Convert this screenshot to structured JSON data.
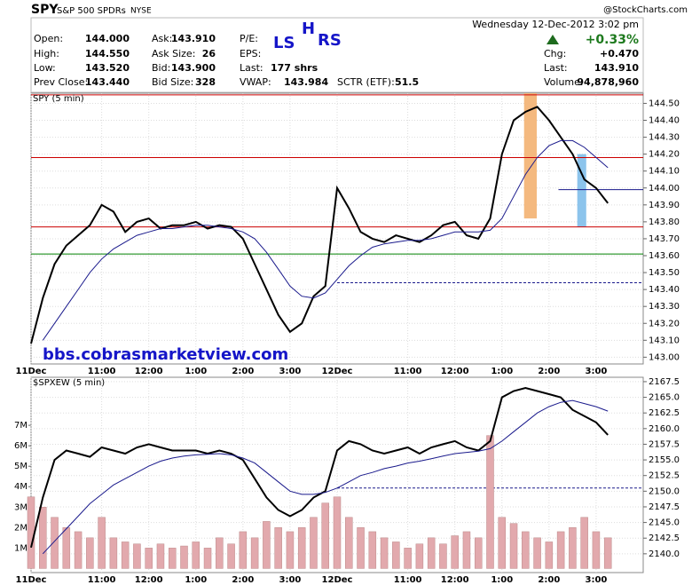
{
  "header": {
    "symbol": "SPY",
    "name": "S&P 500 SPDRs",
    "exchange": "NYSE",
    "credit": "@StockCharts.com",
    "datetime": "Wednesday   12-Dec-2012   3:02 pm",
    "change_pct": "+0.33%",
    "fields": [
      {
        "label": "Open:",
        "value": "144.000"
      },
      {
        "label": "High:",
        "value": "144.550"
      },
      {
        "label": "Low:",
        "value": "143.520"
      },
      {
        "label": "Prev Close:",
        "value": "143.440"
      },
      {
        "label": "Ask:",
        "value": "143.910"
      },
      {
        "label": "Ask Size:",
        "value": "26"
      },
      {
        "label": "Bid:",
        "value": "143.900"
      },
      {
        "label": "Bid Size:",
        "value": "328"
      },
      {
        "label": "P/E:"
      },
      {
        "label": "EPS:"
      },
      {
        "label": "Last:",
        "value": "177 shrs"
      },
      {
        "label": "VWAP:",
        "value": "143.984"
      },
      {
        "label": "SCTR (ETF):",
        "value": "51.5"
      },
      {
        "label": "Chg:",
        "value": "+0.470"
      },
      {
        "label": "Last:",
        "value": "143.910"
      },
      {
        "label": "Volume:",
        "value": "94,878,960"
      }
    ],
    "annotations": [
      "LS",
      "H",
      "RS"
    ],
    "watermark": "bbs.cobrasmarketview.com"
  },
  "chart_data": [
    {
      "type": "line",
      "title": "SPY (5 min)",
      "grid": true,
      "x": [
        0,
        0.25,
        0.5,
        0.75,
        1,
        1.25,
        1.5,
        1.75,
        2,
        2.25,
        2.5,
        2.75,
        3,
        3.25,
        3.5,
        3.75,
        4,
        4.25,
        4.5,
        4.75,
        5,
        5.25,
        5.5,
        5.75,
        6,
        6.25,
        6.5,
        6.75,
        7,
        7.25,
        7.5,
        7.75,
        8,
        8.25,
        8.5,
        8.75,
        9,
        9.25,
        9.5,
        9.75,
        10,
        10.25,
        10.5,
        10.75,
        11,
        11.25,
        11.5,
        11.75,
        12,
        12.25
      ],
      "xlim": [
        0,
        13
      ],
      "xticks": [
        {
          "value": 0,
          "label": "11Dec"
        },
        {
          "value": 1.5,
          "label": "11:00"
        },
        {
          "value": 2.5,
          "label": "12:00"
        },
        {
          "value": 3.5,
          "label": "1:00"
        },
        {
          "value": 4.5,
          "label": "2:00"
        },
        {
          "value": 5.5,
          "label": "3:00"
        },
        {
          "value": 6.5,
          "label": "12Dec"
        },
        {
          "value": 8,
          "label": "11:00"
        },
        {
          "value": 9,
          "label": "12:00"
        },
        {
          "value": 10,
          "label": "1:00"
        },
        {
          "value": 11,
          "label": "2:00"
        },
        {
          "value": 12,
          "label": "3:00"
        }
      ],
      "ylim": [
        142.96,
        144.56
      ],
      "yticks": [
        {
          "value": 143,
          "label": "143.00"
        },
        {
          "value": 143.1,
          "label": "143.10"
        },
        {
          "value": 143.2,
          "label": "143.20"
        },
        {
          "value": 143.3,
          "label": "143.30"
        },
        {
          "value": 143.4,
          "label": "143.40"
        },
        {
          "value": 143.5,
          "label": "143.50"
        },
        {
          "value": 143.6,
          "label": "143.60"
        },
        {
          "value": 143.7,
          "label": "143.70"
        },
        {
          "value": 143.8,
          "label": "143.80"
        },
        {
          "value": 143.9,
          "label": "143.90"
        },
        {
          "value": 144,
          "label": "144.00"
        },
        {
          "value": 144.1,
          "label": "144.10"
        },
        {
          "value": 144.2,
          "label": "144.20"
        },
        {
          "value": 144.3,
          "label": "144.30"
        },
        {
          "value": 144.4,
          "label": "144.40"
        },
        {
          "value": 144.5,
          "label": "144.50"
        }
      ],
      "series": [
        {
          "color": "#000000",
          "width": 2,
          "values": [
            143.08,
            143.35,
            143.55,
            143.66,
            143.72,
            143.78,
            143.9,
            143.86,
            143.74,
            143.8,
            143.82,
            143.76,
            143.78,
            143.78,
            143.8,
            143.76,
            143.78,
            143.77,
            143.7,
            143.55,
            143.4,
            143.25,
            143.15,
            143.2,
            143.36,
            143.42,
            144.0,
            143.88,
            143.74,
            143.7,
            143.68,
            143.72,
            143.7,
            143.68,
            143.72,
            143.78,
            143.8,
            143.72,
            143.7,
            143.82,
            144.2,
            144.4,
            144.45,
            144.48,
            144.4,
            144.3,
            144.2,
            144.05,
            144.0,
            143.91
          ]
        },
        {
          "color": "#1a1a8c",
          "width": 1,
          "values": [
            null,
            143.1,
            143.2,
            143.3,
            143.4,
            143.5,
            143.58,
            143.64,
            143.68,
            143.72,
            143.74,
            143.76,
            143.76,
            143.77,
            143.78,
            143.78,
            143.77,
            143.76,
            143.74,
            143.7,
            143.62,
            143.52,
            143.42,
            143.36,
            143.35,
            143.38,
            143.46,
            143.54,
            143.6,
            143.65,
            143.67,
            143.68,
            143.69,
            143.69,
            143.7,
            143.72,
            143.74,
            143.74,
            143.74,
            143.75,
            143.82,
            143.95,
            144.08,
            144.18,
            144.25,
            144.28,
            144.28,
            144.24,
            144.18,
            144.12
          ]
        }
      ],
      "hlines": [
        {
          "value": 144.55,
          "color": "#cc0000"
        },
        {
          "value": 144.18,
          "color": "#cc0000"
        },
        {
          "value": 143.77,
          "color": "#cc0000"
        },
        {
          "value": 143.61,
          "color": "#008000"
        },
        {
          "value": 143.44,
          "color": "#1a1a8c",
          "style": "dashed",
          "from": 6.5
        },
        {
          "value": 143.99,
          "color": "#1a1a8c",
          "from": 11.2
        }
      ],
      "highlights": [
        {
          "x": [
            10.47,
            10.74
          ],
          "y": [
            143.82,
            144.56
          ],
          "color": "#f4b97f"
        },
        {
          "x": [
            11.6,
            11.79
          ],
          "y": [
            143.77,
            144.2
          ],
          "color": "#8cc4ec"
        }
      ]
    },
    {
      "type": "line",
      "title": "$SPXEW (5 min)",
      "grid": true,
      "x": [
        0,
        0.25,
        0.5,
        0.75,
        1,
        1.25,
        1.5,
        1.75,
        2,
        2.25,
        2.5,
        2.75,
        3,
        3.25,
        3.5,
        3.75,
        4,
        4.25,
        4.5,
        4.75,
        5,
        5.25,
        5.5,
        5.75,
        6,
        6.25,
        6.5,
        6.75,
        7,
        7.25,
        7.5,
        7.75,
        8,
        8.25,
        8.5,
        8.75,
        9,
        9.25,
        9.5,
        9.75,
        10,
        10.25,
        10.5,
        10.75,
        11,
        11.25,
        11.5,
        11.75,
        12,
        12.25
      ],
      "xlim": [
        0,
        13
      ],
      "xticks": [
        {
          "value": 0,
          "label": "11Dec"
        },
        {
          "value": 1.5,
          "label": "11:00"
        },
        {
          "value": 2.5,
          "label": "12:00"
        },
        {
          "value": 3.5,
          "label": "1:00"
        },
        {
          "value": 4.5,
          "label": "2:00"
        },
        {
          "value": 5.5,
          "label": "3:00"
        },
        {
          "value": 6.5,
          "label": "12Dec"
        },
        {
          "value": 8,
          "label": "11:00"
        },
        {
          "value": 9,
          "label": "12:00"
        },
        {
          "value": 10,
          "label": "1:00"
        },
        {
          "value": 11,
          "label": "2:00"
        },
        {
          "value": 12,
          "label": "3:00"
        }
      ],
      "ylim": [
        2137,
        2168.2
      ],
      "yticks": [
        {
          "value": 2140,
          "label": "2140.0"
        },
        2142.5,
        {
          "value": 2145,
          "label": "2145.0"
        },
        2147.5,
        {
          "value": 2150,
          "label": "2150.0"
        },
        2152.5,
        {
          "value": 2155,
          "label": "2155.0"
        },
        2157.5,
        {
          "value": 2160,
          "label": "2160.0"
        },
        2162.5,
        {
          "value": 2165,
          "label": "2165.0"
        },
        2167.5
      ],
      "y2lim": [
        -0.2,
        9.35
      ],
      "y2ticks": [
        {
          "value": 1,
          "label": "1M"
        },
        {
          "value": 2,
          "label": "2M"
        },
        {
          "value": 3,
          "label": "3M"
        },
        {
          "value": 4,
          "label": "4M"
        },
        {
          "value": 5,
          "label": "5M"
        },
        {
          "value": 6,
          "label": "6M"
        },
        {
          "value": 7,
          "label": "7M"
        }
      ],
      "series": [
        {
          "type": "bar",
          "axis": "y2",
          "color": "#e2a9ad",
          "values": [
            3.5,
            3.0,
            2.5,
            2.0,
            1.8,
            1.5,
            2.5,
            1.5,
            1.3,
            1.2,
            1.0,
            1.2,
            1.0,
            1.1,
            1.3,
            1.0,
            1.5,
            1.2,
            1.8,
            1.5,
            2.3,
            2.0,
            1.8,
            2.0,
            2.5,
            3.2,
            3.5,
            2.5,
            2.0,
            1.8,
            1.5,
            1.3,
            1.0,
            1.2,
            1.5,
            1.2,
            1.6,
            1.8,
            1.5,
            6.5,
            2.5,
            2.2,
            1.8,
            1.5,
            1.3,
            1.8,
            2.0,
            2.5,
            1.8,
            1.5
          ]
        },
        {
          "color": "#000000",
          "width": 2,
          "values": [
            2141,
            2149,
            2155,
            2156.5,
            2156,
            2155.5,
            2157,
            2156.5,
            2156,
            2157,
            2157.5,
            2157,
            2156.5,
            2156.5,
            2156.5,
            2156,
            2156.5,
            2156,
            2155,
            2152,
            2149,
            2147,
            2146,
            2147,
            2149,
            2150,
            2156.5,
            2158,
            2157.5,
            2156.5,
            2156,
            2156.5,
            2157,
            2156,
            2157,
            2157.5,
            2158,
            2157,
            2156.5,
            2158,
            2165,
            2166,
            2166.5,
            2166,
            2165.5,
            2165,
            2163,
            2162,
            2161,
            2159
          ]
        },
        {
          "color": "#1a1a8c",
          "width": 1,
          "values": [
            null,
            2140,
            2142,
            2144,
            2146,
            2148,
            2149.5,
            2151,
            2152,
            2153,
            2154,
            2154.8,
            2155.3,
            2155.6,
            2155.8,
            2155.9,
            2156,
            2155.8,
            2155.3,
            2154.5,
            2153,
            2151.5,
            2150,
            2149.5,
            2149.5,
            2149.8,
            2150.5,
            2151.5,
            2152.5,
            2153,
            2153.6,
            2154,
            2154.5,
            2154.8,
            2155.2,
            2155.6,
            2156,
            2156.2,
            2156.4,
            2156.8,
            2158,
            2159.5,
            2161,
            2162.5,
            2163.5,
            2164.2,
            2164.5,
            2164,
            2163.5,
            2162.8
          ]
        }
      ],
      "hlines": [
        {
          "value": 2150.5,
          "color": "#1a1a8c",
          "style": "dashed",
          "from": 6.5
        }
      ]
    }
  ]
}
